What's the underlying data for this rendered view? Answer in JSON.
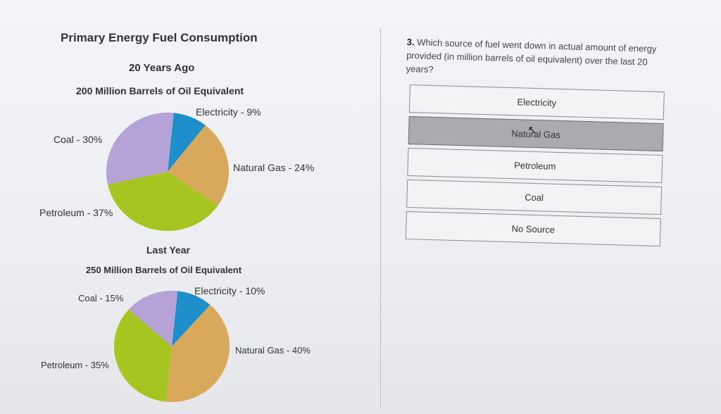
{
  "left_panel": {
    "title": "Primary Energy Fuel Consumption",
    "chart1_subtitle": "20 Years Ago",
    "chart1_total": "200 Million Barrels of Oil Equivalent",
    "chart2_subtitle": "Last Year",
    "chart2_total": "250 Million Barrels of Oil Equivalent"
  },
  "chart_data": [
    {
      "type": "pie",
      "title": "20 Years Ago",
      "subtitle": "200 Million Barrels of Oil Equivalent",
      "slices": [
        {
          "label": "Electricity - 9%",
          "value": 9,
          "color": "#1f8fcc"
        },
        {
          "label": "Natural Gas - 24%",
          "value": 24,
          "color": "#d9a95b"
        },
        {
          "label": "Petroleum - 37%",
          "value": 37,
          "color": "#a7c520"
        },
        {
          "label": "Coal - 30%",
          "value": 30,
          "color": "#b5a2d6"
        }
      ]
    },
    {
      "type": "pie",
      "title": "Last Year",
      "subtitle": "250 Million Barrels of Oil Equivalent",
      "slices": [
        {
          "label": "Electricity - 10%",
          "value": 10,
          "color": "#1f8fcc"
        },
        {
          "label": "Natural Gas - 40%",
          "value": 40,
          "color": "#d9a95b"
        },
        {
          "label": "Petroleum - 35%",
          "value": 35,
          "color": "#a7c520"
        },
        {
          "label": "Coal - 15%",
          "value": 15,
          "color": "#b5a2d6"
        }
      ]
    }
  ],
  "question": {
    "number": "3.",
    "text": "Which source of fuel went down in actual amount of energy provided (in million barrels of oil equivalent) over the last 20 years?",
    "options": [
      {
        "label": "Electricity",
        "selected": false
      },
      {
        "label": "Natural Gas",
        "selected": true
      },
      {
        "label": "Petroleum",
        "selected": false
      },
      {
        "label": "Coal",
        "selected": false
      },
      {
        "label": "No Source",
        "selected": false
      }
    ]
  }
}
